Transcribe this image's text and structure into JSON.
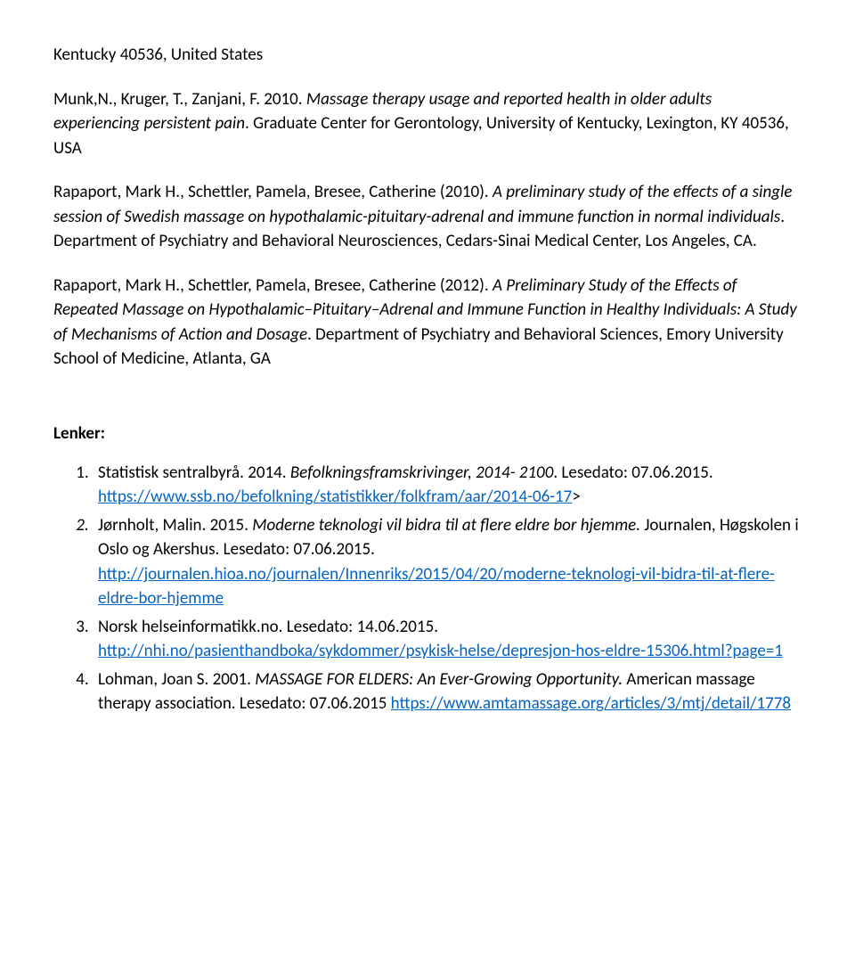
{
  "top_line": "Kentucky 40536, United States",
  "ref1": {
    "authors": "Munk,N., Kruger, T., Zanjani, F. 2010. ",
    "title": "Massage therapy usage and reported health in older adults experiencing persistent pain",
    "tail": ". Graduate Center for Gerontology, University of Kentucky, Lexington, KY 40536, USA"
  },
  "ref2": {
    "authors": "Rapaport, Mark H., Schettler, Pamela, Bresee, Catherine (2010). ",
    "title": "A preliminary study of the effects of a single session of Swedish massage on hypothalamic-pituitary-adrenal and immune function in normal individuals",
    "tail": ". Department of Psychiatry and Behavioral Neurosciences, Cedars-Sinai Medical Center, Los Angeles, CA."
  },
  "ref3": {
    "authors": "Rapaport, Mark H., Schettler, Pamela, Bresee, Catherine (2012).  ",
    "title": "A Preliminary Study of the Effects of Repeated Massage on Hypothalamic–Pituitary–Adrenal and Immune Function in Healthy Individuals: A Study of Mechanisms of Action and Dosage",
    "tail": ". Department of Psychiatry and Behavioral Sciences, Emory University School of Medicine, Atlanta, GA"
  },
  "lenker_heading": "Lenker:",
  "links": {
    "l1": {
      "pre": "Statistisk sentralbyrå. 2014. ",
      "title": "Befolkningsframskrivinger, 2014- 2100",
      "mid": ". Lesedato: 07.06.2015.  ",
      "url": "https://www.ssb.no/befolkning/statistikker/folkfram/aar/2014-06-17",
      "post": ">"
    },
    "l2": {
      "pre": "Jørnholt, Malin. 2015. ",
      "title": "Moderne teknologi vil bidra til at flere eldre bor hjemme.",
      "mid": " Journalen, Høgskolen i Oslo og Akershus. Lesedato: 07.06.2015. ",
      "url": "http://journalen.hioa.no/journalen/Innenriks/2015/04/20/moderne-teknologi-vil-bidra-til-at-flere-eldre-bor-hjemme"
    },
    "l3": {
      "pre": "Norsk helseinformatikk.no. Lesedato: 14.06.2015. ",
      "url": "http://nhi.no/pasienthandboka/sykdommer/psykisk-helse/depresjon-hos-eldre-15306.html?page=1"
    },
    "l4": {
      "pre": "Lohman, Joan S. 2001. ",
      "title": "MASSAGE FOR ELDERS: An Ever-Growing Opportunity.",
      "mid": " American massage therapy association. Lesedato: 07.06.2015 ",
      "url": "https://www.amtamassage.org/articles/3/mtj/detail/1778"
    }
  }
}
